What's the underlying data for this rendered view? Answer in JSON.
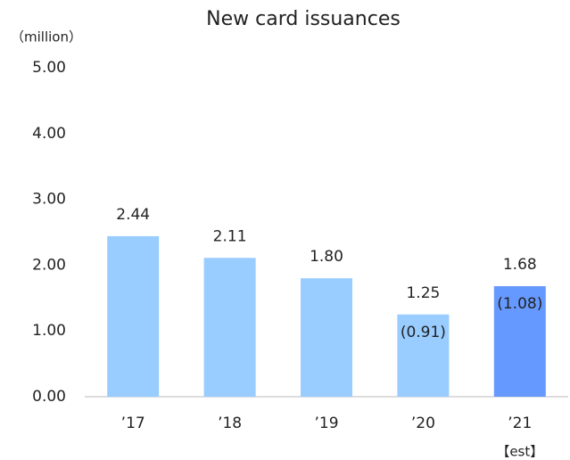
{
  "chart_data": {
    "type": "bar",
    "title": "New card issuances",
    "y_unit": "（million）",
    "categories": [
      "’17",
      "’18",
      "’19",
      "’20",
      "’21"
    ],
    "values": [
      2.44,
      2.11,
      1.8,
      1.25,
      1.68
    ],
    "value_labels": [
      "2.44",
      "2.11",
      "1.80",
      "1.25",
      "1.68"
    ],
    "colors": [
      "#99ccff",
      "#99ccff",
      "#99ccff",
      "#99ccff",
      "#6699ff"
    ],
    "annotations": [
      {
        "x": "’20",
        "text": "(0.91)"
      },
      {
        "x": "’21",
        "text": "(1.08)"
      }
    ],
    "x_note": {
      "x": "’21",
      "text": "【est】"
    },
    "ylim": [
      0,
      5
    ],
    "yticks": [
      {
        "value": 0,
        "label": "0.00"
      },
      {
        "value": 1,
        "label": "1.00"
      },
      {
        "value": 2,
        "label": "2.00"
      },
      {
        "value": 3,
        "label": "3.00"
      },
      {
        "value": 4,
        "label": "4.00"
      },
      {
        "value": 5,
        "label": "5.00"
      }
    ],
    "grid": false
  }
}
